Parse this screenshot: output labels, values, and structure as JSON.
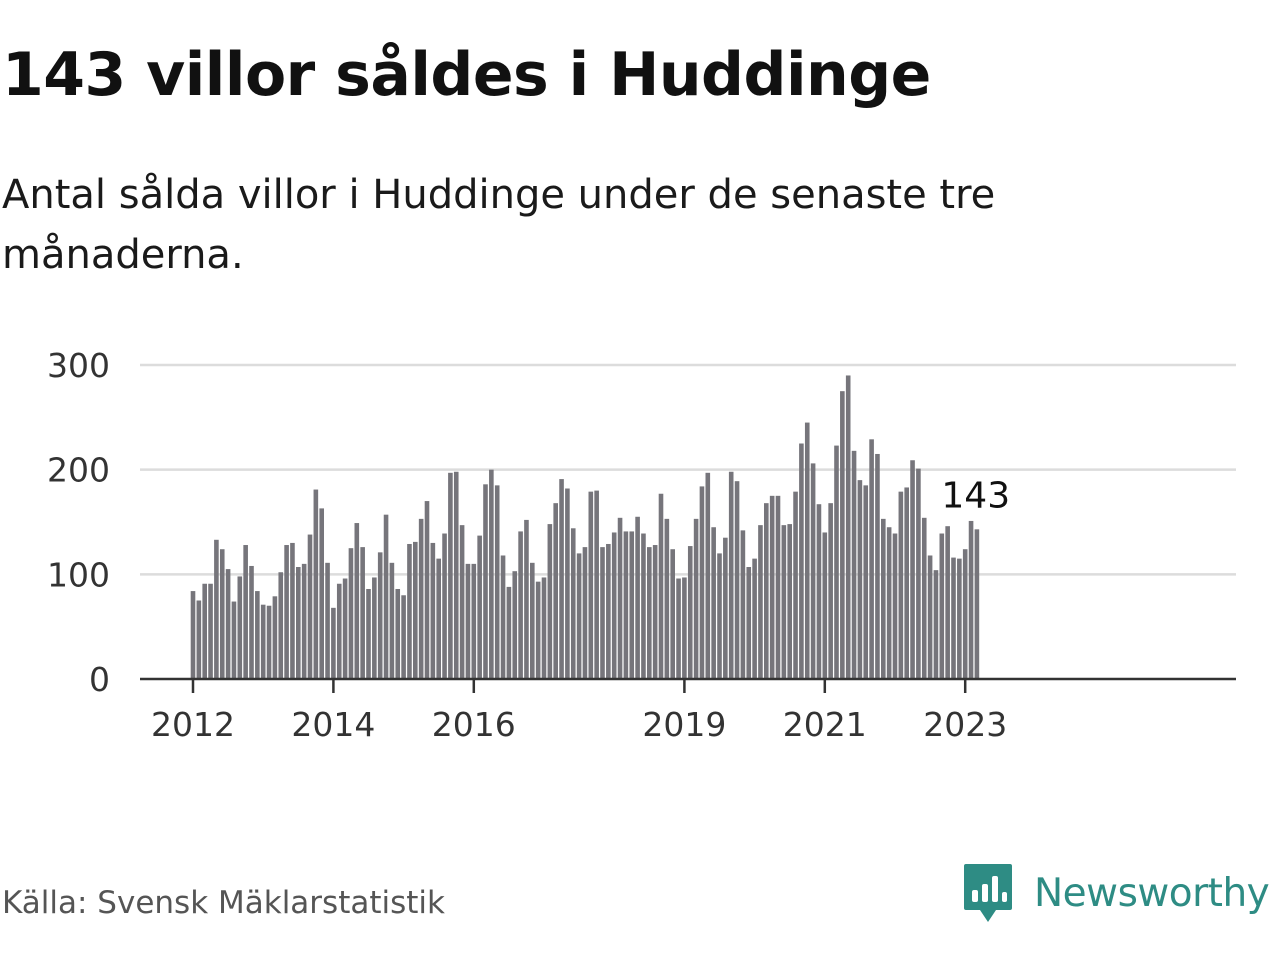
{
  "header": {
    "title": "143 villor såldes i Huddinge",
    "subtitle": "Antal sålda villor i Huddinge under de senaste tre månaderna."
  },
  "footer": {
    "source": "Källa: Svensk Mäklarstatistik",
    "brand": "Newsworthy"
  },
  "colors": {
    "bar": "#76757b",
    "highlight": "#1a9c91",
    "grid": "#dcdcdc",
    "axis": "#333333",
    "brand": "#2e8c84"
  },
  "chart_data": {
    "type": "bar",
    "title": "143 villor såldes i Huddinge",
    "subtitle": "Antal sålda villor i Huddinge under de senaste tre månaderna.",
    "xlabel": "",
    "ylabel": "",
    "ylim": [
      0,
      300
    ],
    "y_ticks": [
      0,
      100,
      200,
      300
    ],
    "y_tick_labels": [
      "0",
      "100",
      "200",
      "300"
    ],
    "grid": true,
    "x_ticks": [
      {
        "label": "2012",
        "index": 0
      },
      {
        "label": "2014",
        "index": 24
      },
      {
        "label": "2016",
        "index": 48
      },
      {
        "label": "2019",
        "index": 84
      },
      {
        "label": "2021",
        "index": 108
      },
      {
        "label": "2023",
        "index": 132
      }
    ],
    "annotation": {
      "label": "143",
      "index": 135,
      "value": 143
    },
    "highlight_index": 135,
    "values": [
      84,
      75,
      91,
      91,
      133,
      124,
      105,
      74,
      98,
      128,
      108,
      84,
      71,
      70,
      79,
      102,
      128,
      130,
      107,
      110,
      138,
      181,
      163,
      111,
      68,
      91,
      96,
      125,
      149,
      126,
      86,
      97,
      121,
      157,
      111,
      86,
      80,
      129,
      131,
      153,
      170,
      130,
      115,
      139,
      197,
      198,
      147,
      110,
      110,
      137,
      186,
      200,
      185,
      118,
      88,
      103,
      141,
      152,
      111,
      93,
      97,
      148,
      168,
      191,
      182,
      144,
      120,
      126,
      179,
      180,
      126,
      129,
      140,
      154,
      141,
      141,
      155,
      139,
      126,
      128,
      177,
      153,
      124,
      96,
      97,
      127,
      153,
      184,
      197,
      145,
      120,
      135,
      198,
      189,
      142,
      107,
      115,
      147,
      168,
      175,
      175,
      147,
      148,
      179,
      225,
      245,
      206,
      167,
      140,
      168,
      223,
      275,
      290,
      218,
      190,
      185,
      229,
      215,
      153,
      145,
      139,
      179,
      183,
      209,
      201,
      154,
      118,
      104,
      139,
      146,
      116,
      115,
      124,
      151,
      143
    ]
  }
}
